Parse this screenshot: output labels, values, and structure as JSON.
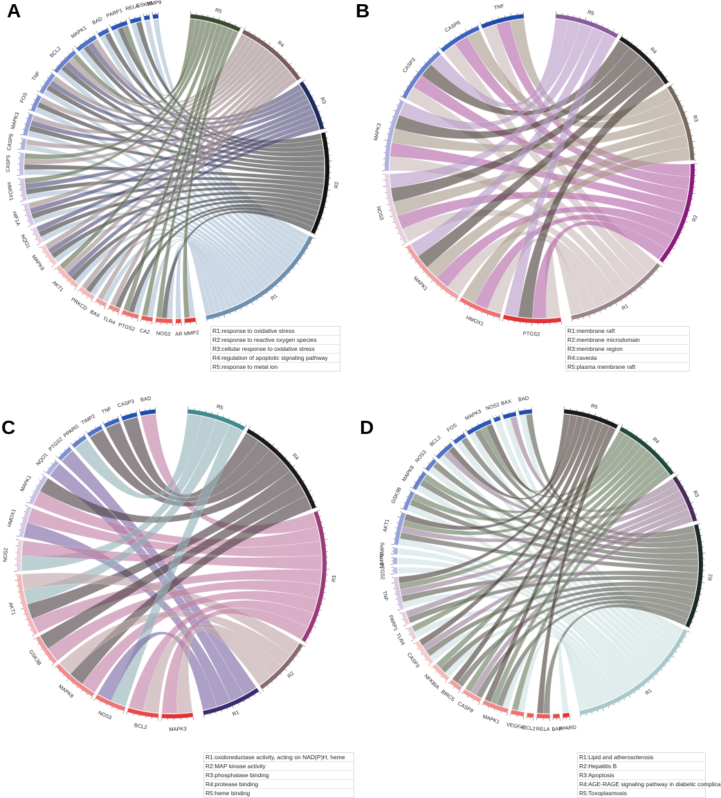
{
  "panels": [
    {
      "id": "A",
      "letter": "A",
      "terms": [
        {
          "id": "R5",
          "color": "#3a4a2c",
          "link": "#5d6a4e",
          "size": 16
        },
        {
          "id": "R4",
          "color": "#7a5a5e",
          "link": "#a08a8c",
          "size": 14
        },
        {
          "id": "R3",
          "color": "#1d2a5a",
          "link": "#4d4a78",
          "size": 14
        },
        {
          "id": "R2",
          "color": "#111111",
          "link": "#3a3a3a",
          "size": 17
        },
        {
          "id": "R1",
          "color": "#6e8fb0",
          "link": "#a9bed4",
          "size": 19
        }
      ],
      "genes": [
        "MMP9",
        "GSK3B",
        "RELA",
        "PARP1",
        "BAD",
        "MAPK1",
        "BCL2",
        "TNF",
        "FOS",
        "MAPK3",
        "CASP8",
        "CASP3",
        "HMOX1",
        "HIF1A",
        "NQO1",
        "MAPK8",
        "AKT1",
        "PRKCD",
        "BAX",
        "TLR4",
        "PTGS2",
        "CA2",
        "NOS3",
        "AR",
        "MMP2"
      ],
      "links": [
        [
          "MMP9",
          "R1"
        ],
        [
          "GSK3B",
          "R1"
        ],
        [
          "RELA",
          "R1"
        ],
        [
          "RELA",
          "R2"
        ],
        [
          "PARP1",
          "R1"
        ],
        [
          "PARP1",
          "R2"
        ],
        [
          "PARP1",
          "R5"
        ],
        [
          "BAD",
          "R1"
        ],
        [
          "BAD",
          "R2"
        ],
        [
          "MAPK1",
          "R1"
        ],
        [
          "MAPK1",
          "R2"
        ],
        [
          "MAPK1",
          "R3"
        ],
        [
          "MAPK1",
          "R4"
        ],
        [
          "BCL2",
          "R1"
        ],
        [
          "BCL2",
          "R2"
        ],
        [
          "BCL2",
          "R3"
        ],
        [
          "BCL2",
          "R4"
        ],
        [
          "BCL2",
          "R5"
        ],
        [
          "TNF",
          "R1"
        ],
        [
          "TNF",
          "R2"
        ],
        [
          "TNF",
          "R3"
        ],
        [
          "TNF",
          "R4"
        ],
        [
          "FOS",
          "R1"
        ],
        [
          "FOS",
          "R2"
        ],
        [
          "FOS",
          "R4"
        ],
        [
          "MAPK3",
          "R1"
        ],
        [
          "MAPK3",
          "R2"
        ],
        [
          "MAPK3",
          "R3"
        ],
        [
          "MAPK3",
          "R4"
        ],
        [
          "CASP8",
          "R1"
        ],
        [
          "CASP8",
          "R4"
        ],
        [
          "CASP3",
          "R1"
        ],
        [
          "CASP3",
          "R2"
        ],
        [
          "CASP3",
          "R4"
        ],
        [
          "CASP3",
          "R5"
        ],
        [
          "HMOX1",
          "R1"
        ],
        [
          "HMOX1",
          "R2"
        ],
        [
          "HMOX1",
          "R3"
        ],
        [
          "HMOX1",
          "R5"
        ],
        [
          "HIF1A",
          "R1"
        ],
        [
          "HIF1A",
          "R2"
        ],
        [
          "HIF1A",
          "R3"
        ],
        [
          "HIF1A",
          "R4"
        ],
        [
          "NQO1",
          "R1"
        ],
        [
          "NQO1",
          "R2"
        ],
        [
          "NQO1",
          "R3"
        ],
        [
          "MAPK8",
          "R1"
        ],
        [
          "MAPK8",
          "R2"
        ],
        [
          "MAPK8",
          "R3"
        ],
        [
          "MAPK8",
          "R4"
        ],
        [
          "AKT1",
          "R1"
        ],
        [
          "AKT1",
          "R2"
        ],
        [
          "AKT1",
          "R3"
        ],
        [
          "AKT1",
          "R4"
        ],
        [
          "AKT1",
          "R5"
        ],
        [
          "PRKCD",
          "R1"
        ],
        [
          "PRKCD",
          "R2"
        ],
        [
          "PRKCD",
          "R4"
        ],
        [
          "BAX",
          "R1"
        ],
        [
          "BAX",
          "R4"
        ],
        [
          "TLR4",
          "R2"
        ],
        [
          "TLR4",
          "R4"
        ],
        [
          "PTGS2",
          "R1"
        ],
        [
          "PTGS2",
          "R2"
        ],
        [
          "PTGS2",
          "R5"
        ],
        [
          "CA2",
          "R1"
        ],
        [
          "CA2",
          "R5"
        ],
        [
          "NOS3",
          "R1"
        ],
        [
          "NOS3",
          "R2"
        ],
        [
          "NOS3",
          "R5"
        ],
        [
          "AR",
          "R1"
        ],
        [
          "MMP2",
          "R1"
        ],
        [
          "MMP2",
          "R5"
        ]
      ],
      "legend": [
        "R1:response to oxidative stress",
        "R2:response to reactive oxygen species",
        "R3:cellular response to oxidative stress",
        "R4:regulation of apoptotic signaling pathway",
        "R5:response to metal ion"
      ]
    },
    {
      "id": "B",
      "letter": "B",
      "terms": [
        {
          "id": "R5",
          "color": "#8a5a9e",
          "link": "#b79ac6",
          "size": 7
        },
        {
          "id": "R4",
          "color": "#1a1a1a",
          "link": "#4a3e38",
          "size": 7
        },
        {
          "id": "R3",
          "color": "#766a5c",
          "link": "#a89b8a",
          "size": 10
        },
        {
          "id": "R2",
          "color": "#8a1a7e",
          "link": "#b565a8",
          "size": 10
        },
        {
          "id": "R1",
          "color": "#9a8488",
          "link": "#c9b9ba",
          "size": 11
        }
      ],
      "genes": [
        "TNF",
        "CASP8",
        "CASP3",
        "MAPK3",
        "NOS3",
        "MAPK1",
        "HMOX1",
        "PTGS2"
      ],
      "links": [
        [
          "TNF",
          "R1"
        ],
        [
          "TNF",
          "R2"
        ],
        [
          "TNF",
          "R3"
        ],
        [
          "CASP8",
          "R1"
        ],
        [
          "CASP8",
          "R2"
        ],
        [
          "CASP8",
          "R3"
        ],
        [
          "CASP3",
          "R1"
        ],
        [
          "CASP3",
          "R2"
        ],
        [
          "CASP3",
          "R4"
        ],
        [
          "CASP3",
          "R5"
        ],
        [
          "MAPK3",
          "R1"
        ],
        [
          "MAPK3",
          "R2"
        ],
        [
          "MAPK3",
          "R3"
        ],
        [
          "MAPK3",
          "R4"
        ],
        [
          "MAPK3",
          "R5"
        ],
        [
          "NOS3",
          "R1"
        ],
        [
          "NOS3",
          "R2"
        ],
        [
          "NOS3",
          "R3"
        ],
        [
          "NOS3",
          "R4"
        ],
        [
          "NOS3",
          "R5"
        ],
        [
          "MAPK1",
          "R1"
        ],
        [
          "MAPK1",
          "R2"
        ],
        [
          "MAPK1",
          "R3"
        ],
        [
          "MAPK1",
          "R4"
        ],
        [
          "MAPK1",
          "R5"
        ],
        [
          "HMOX1",
          "R1"
        ],
        [
          "HMOX1",
          "R2"
        ],
        [
          "HMOX1",
          "R3"
        ],
        [
          "PTGS2",
          "R1"
        ],
        [
          "PTGS2",
          "R2"
        ],
        [
          "PTGS2",
          "R4"
        ],
        [
          "PTGS2",
          "R5"
        ]
      ],
      "legend": [
        "R1:membrane raft",
        "R2:membrane microdomain",
        "R3:membrane region",
        "R4:caveola",
        "R5:plasma membrane raft"
      ]
    },
    {
      "id": "C",
      "letter": "C",
      "terms": [
        {
          "id": "R5",
          "color": "#3e8a8e",
          "link": "#93b2b8",
          "size": 7
        },
        {
          "id": "R4",
          "color": "#1a1a1a",
          "link": "#4a3e40",
          "size": 6
        },
        {
          "id": "R3",
          "color": "#9a3a7a",
          "link": "#c27ea4",
          "size": 9
        },
        {
          "id": "R2",
          "color": "#8a6a6e",
          "link": "#bea4a6",
          "size": 6
        },
        {
          "id": "R1",
          "color": "#3a2a6e",
          "link": "#7a66a4",
          "size": 4
        }
      ],
      "genes": [
        "BAD",
        "CASP3",
        "TNF",
        "TIMP2",
        "PPARG",
        "PTGS2",
        "NQO1",
        "MAPK1",
        "HMOX1",
        "NOS2",
        "AKT1",
        "GSK3B",
        "MAPK8",
        "NOS3",
        "BCL2",
        "MAPK3"
      ],
      "links": [
        [
          "BAD",
          "R3"
        ],
        [
          "CASP3",
          "R4"
        ],
        [
          "TNF",
          "R4"
        ],
        [
          "TIMP2",
          "R4"
        ],
        [
          "PPARG",
          "R5"
        ],
        [
          "PTGS2",
          "R1"
        ],
        [
          "NQO1",
          "R1"
        ],
        [
          "MAPK1",
          "R3"
        ],
        [
          "MAPK1",
          "R4"
        ],
        [
          "HMOX1",
          "R1"
        ],
        [
          "HMOX1",
          "R3"
        ],
        [
          "NOS2",
          "R5"
        ],
        [
          "NOS2",
          "R3"
        ],
        [
          "AKT1",
          "R3"
        ],
        [
          "AKT1",
          "R4"
        ],
        [
          "AKT1",
          "R5"
        ],
        [
          "AKT1",
          "R2"
        ],
        [
          "GSK3B",
          "R3"
        ],
        [
          "GSK3B",
          "R4"
        ],
        [
          "MAPK8",
          "R3"
        ],
        [
          "MAPK8",
          "R4"
        ],
        [
          "MAPK8",
          "R2"
        ],
        [
          "NOS3",
          "R5"
        ],
        [
          "NOS3",
          "R1"
        ],
        [
          "BCL2",
          "R2"
        ],
        [
          "BCL2",
          "R3"
        ],
        [
          "MAPK3",
          "R2"
        ],
        [
          "MAPK3",
          "R3"
        ]
      ],
      "legend": [
        "R1:oxidoreductase activity, acting on NAD(P)H, heme",
        "R2:MAP kinase activity",
        "R3:phosphatase binding",
        "R4:protease binding",
        "R5:heme binding"
      ]
    },
    {
      "id": "D",
      "letter": "D",
      "terms": [
        {
          "id": "R5",
          "color": "#1a1a1a",
          "link": "#4a3e38",
          "size": 13
        },
        {
          "id": "R4",
          "color": "#1e4a38",
          "link": "#6a7a60",
          "size": 13
        },
        {
          "id": "R3",
          "color": "#4a2a56",
          "link": "#9a7e96",
          "size": 12
        },
        {
          "id": "R2",
          "color": "#1a2a24",
          "link": "#5a5e52",
          "size": 17
        },
        {
          "id": "R1",
          "color": "#a8c8cc",
          "link": "#cfe0e2",
          "size": 18
        }
      ],
      "genes": [
        "BAD",
        "BAX",
        "NOS2",
        "MAPK3",
        "FOS",
        "BCL2",
        "NOS3",
        "MAPK8",
        "GSK3B",
        "AKT1",
        "MMP9",
        "MMP2",
        "PTGS2",
        "TNF",
        "PARP1",
        "TLR4",
        "CASP3",
        "NFKBIA",
        "BIRC5",
        "CASP8",
        "MAPK1",
        "VEGFA",
        "BCL2",
        "RELA",
        "BAX",
        "PPARG"
      ],
      "links": [
        [
          "BAD",
          "R1"
        ],
        [
          "BAD",
          "R2"
        ],
        [
          "BAX",
          "R1"
        ],
        [
          "BAX",
          "R3"
        ],
        [
          "NOS2",
          "R1"
        ],
        [
          "MAPK3",
          "R1"
        ],
        [
          "MAPK3",
          "R2"
        ],
        [
          "MAPK3",
          "R4"
        ],
        [
          "MAPK3",
          "R5"
        ],
        [
          "FOS",
          "R1"
        ],
        [
          "FOS",
          "R2"
        ],
        [
          "BCL2",
          "R1"
        ],
        [
          "BCL2",
          "R3"
        ],
        [
          "BCL2",
          "R5"
        ],
        [
          "NOS3",
          "R1"
        ],
        [
          "NOS3",
          "R2"
        ],
        [
          "MAPK8",
          "R1"
        ],
        [
          "MAPK8",
          "R2"
        ],
        [
          "MAPK8",
          "R4"
        ],
        [
          "GSK3B",
          "R1"
        ],
        [
          "GSK3B",
          "R2"
        ],
        [
          "GSK3B",
          "R4"
        ],
        [
          "AKT1",
          "R1"
        ],
        [
          "AKT1",
          "R2"
        ],
        [
          "AKT1",
          "R3"
        ],
        [
          "AKT1",
          "R4"
        ],
        [
          "AKT1",
          "R5"
        ],
        [
          "MMP9",
          "R1"
        ],
        [
          "MMP2",
          "R1"
        ],
        [
          "PTGS2",
          "R1"
        ],
        [
          "TNF",
          "R1"
        ],
        [
          "TNF",
          "R2"
        ],
        [
          "TNF",
          "R3"
        ],
        [
          "TNF",
          "R4"
        ],
        [
          "TNF",
          "R5"
        ],
        [
          "PARP1",
          "R2"
        ],
        [
          "PARP1",
          "R3"
        ],
        [
          "TLR4",
          "R1"
        ],
        [
          "TLR4",
          "R4"
        ],
        [
          "CASP3",
          "R1"
        ],
        [
          "CASP3",
          "R2"
        ],
        [
          "CASP3",
          "R3"
        ],
        [
          "CASP3",
          "R5"
        ],
        [
          "NFKBIA",
          "R1"
        ],
        [
          "NFKBIA",
          "R2"
        ],
        [
          "NFKBIA",
          "R4"
        ],
        [
          "BIRC5",
          "R2"
        ],
        [
          "BIRC5",
          "R5"
        ],
        [
          "CASP8",
          "R2"
        ],
        [
          "CASP8",
          "R3"
        ],
        [
          "CASP8",
          "R4"
        ],
        [
          "MAPK1",
          "R1"
        ],
        [
          "MAPK1",
          "R2"
        ],
        [
          "MAPK1",
          "R4"
        ],
        [
          "MAPK1",
          "R5"
        ],
        [
          "VEGFA",
          "R1"
        ],
        [
          "VEGFA",
          "R4"
        ],
        [
          "RELA",
          "R2"
        ],
        [
          "RELA",
          "R5"
        ],
        [
          "PPARG",
          "R1"
        ]
      ],
      "legend": [
        "R1:Lipid and atherosclerosis",
        "R2:Hepatitis B",
        "R3:Apoptosis",
        "R4:AGE-RAGE signaling pathway in diabetic complica",
        "R5:Toxoplasmosis"
      ]
    }
  ]
}
